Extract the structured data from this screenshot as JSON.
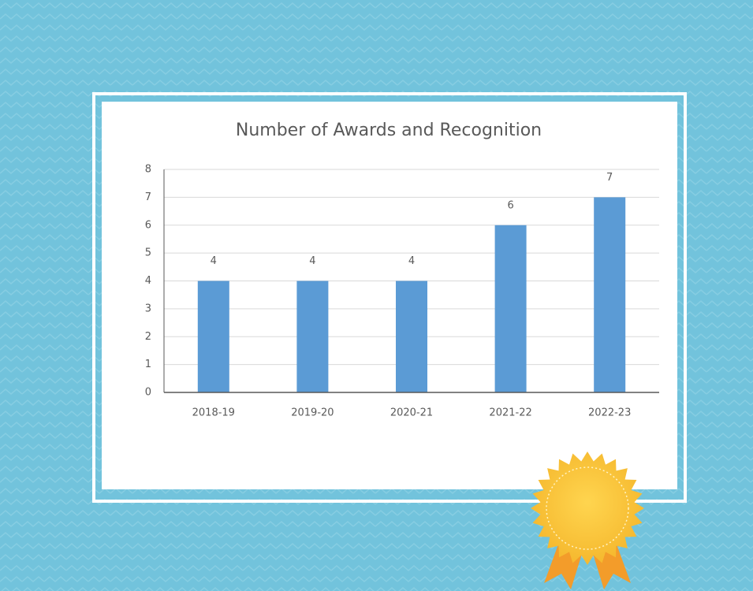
{
  "chart_data": {
    "type": "bar",
    "title": "Number of Awards and Recognition",
    "categories": [
      "2018-19",
      "2019-20",
      "2020-21",
      "2021-22",
      "2022-23"
    ],
    "values": [
      4,
      4,
      4,
      6,
      7
    ],
    "color": "#5b9bd5",
    "ylim": [
      0,
      8
    ],
    "yticks": [
      0,
      1,
      2,
      3,
      4,
      5,
      6,
      7,
      8
    ],
    "grid": true
  }
}
